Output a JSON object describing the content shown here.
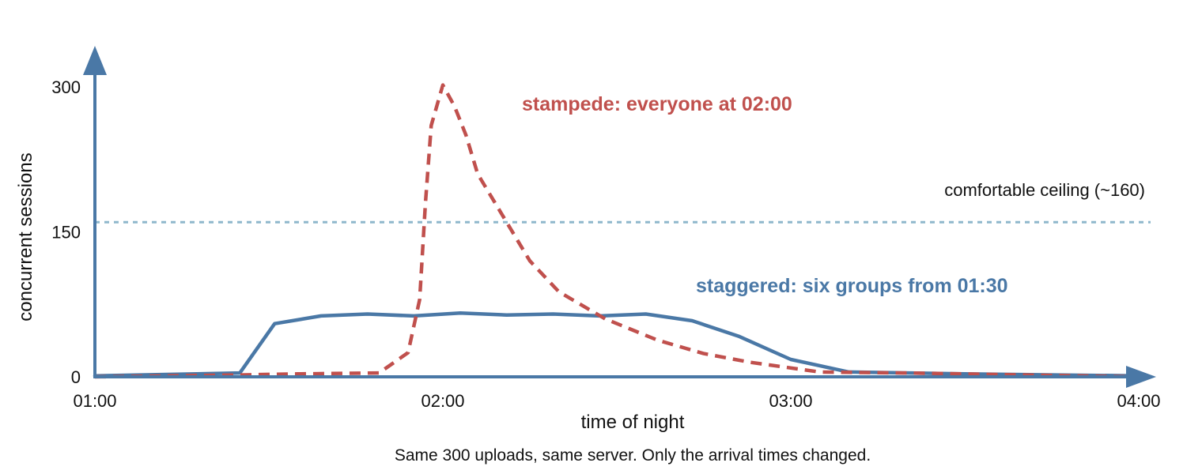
{
  "chart_data": {
    "type": "line",
    "title": "",
    "xlabel": "time of night",
    "ylabel": "concurrent sessions",
    "caption": "Same 300 uploads, same server. Only the arrival times changed.",
    "x_ticks": [
      {
        "label": "01:00",
        "value": 0
      },
      {
        "label": "02:00",
        "value": 60
      },
      {
        "label": "03:00",
        "value": 120
      },
      {
        "label": "04:00",
        "value": 180
      }
    ],
    "y_ticks": [
      {
        "label": "0",
        "value": 0
      },
      {
        "label": "150",
        "value": 150
      },
      {
        "label": "300",
        "value": 300
      }
    ],
    "xlim": [
      0,
      180
    ],
    "ylim": [
      0,
      300
    ],
    "grid": false,
    "reference_line": {
      "value": 160,
      "label": "comfortable ceiling (~160)",
      "color": "#8fb8cc"
    },
    "series": [
      {
        "name": "staggered: six groups from 01:30",
        "color": "#4a78a6",
        "style": "solid",
        "points": [
          [
            0,
            1
          ],
          [
            25,
            4
          ],
          [
            31,
            55
          ],
          [
            39,
            63
          ],
          [
            47,
            65
          ],
          [
            55,
            63
          ],
          [
            63,
            66
          ],
          [
            71,
            64
          ],
          [
            79,
            65
          ],
          [
            87,
            63
          ],
          [
            95,
            65
          ],
          [
            103,
            58
          ],
          [
            111,
            42
          ],
          [
            120,
            18
          ],
          [
            130,
            5
          ],
          [
            150,
            3
          ],
          [
            180,
            1
          ]
        ]
      },
      {
        "name": "stampede: everyone at 02:00",
        "color": "#c0504d",
        "style": "dashed",
        "points": [
          [
            0,
            0
          ],
          [
            25,
            2
          ],
          [
            35,
            3
          ],
          [
            49,
            4
          ],
          [
            54,
            25
          ],
          [
            56,
            80
          ],
          [
            57,
            180
          ],
          [
            58,
            260
          ],
          [
            60,
            302
          ],
          [
            62,
            280
          ],
          [
            64,
            250
          ],
          [
            66,
            210
          ],
          [
            70,
            170
          ],
          [
            75,
            120
          ],
          [
            80,
            88
          ],
          [
            88,
            60
          ],
          [
            97,
            38
          ],
          [
            105,
            24
          ],
          [
            113,
            15
          ],
          [
            125,
            5
          ],
          [
            140,
            4
          ],
          [
            160,
            2
          ],
          [
            180,
            0
          ]
        ]
      }
    ]
  }
}
